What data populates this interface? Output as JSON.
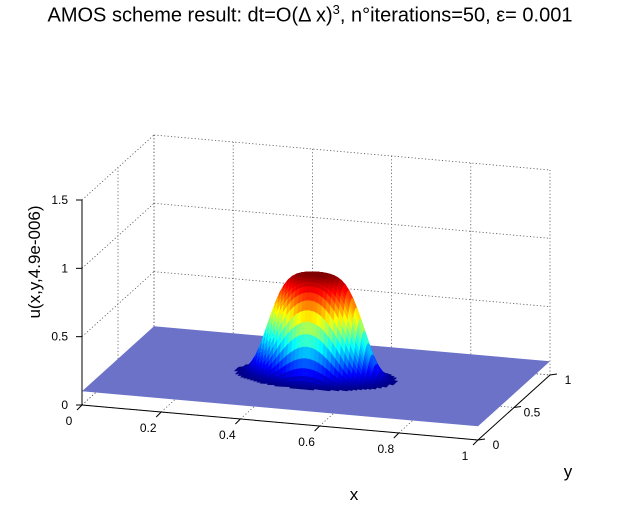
{
  "chart_data": {
    "type": "surface",
    "title": {
      "prefix": "AMOS scheme result: dt=O(Δ x)",
      "superscript": "3",
      "suffix": ", n°iterations=50, ε= 0.001"
    },
    "xlabel": "x",
    "ylabel": "y",
    "zlabel": "u(x,y,4.9e-006)",
    "xlim": [
      0,
      1
    ],
    "ylim": [
      0,
      1
    ],
    "zlim": [
      0,
      1.5
    ],
    "x_ticks": [
      "0",
      "0.2",
      "0.4",
      "0.6",
      "0.8",
      "1"
    ],
    "y_ticks": [
      "0",
      "0.5",
      "1"
    ],
    "z_ticks": [
      "0",
      "0.5",
      "1",
      "1.5"
    ],
    "grid": true,
    "colormap": "jet",
    "baseline_value": 0.1,
    "peak": {
      "x": 0.5,
      "y": 0.5,
      "value": 0.85
    },
    "colors": {
      "base_plane": "#6b72c8",
      "background": "#ffffff",
      "grid": "#555555"
    }
  }
}
